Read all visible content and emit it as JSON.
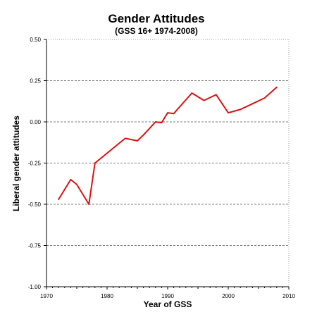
{
  "chart_data": {
    "type": "line",
    "title": "Gender Attitudes",
    "subtitle": "(GSS 16+ 1974-2008)",
    "xlabel": "Year of GSS",
    "ylabel": "Liberal gender attitudes",
    "xlim": [
      1970,
      2010
    ],
    "ylim": [
      -1.0,
      0.5
    ],
    "xticks": [
      1970,
      1980,
      1990,
      2000,
      2010
    ],
    "xtick_labels": [
      "1970",
      "1980",
      "1990",
      "2000",
      "2010"
    ],
    "yticks": [
      0.5,
      0.25,
      0.0,
      -0.25,
      -0.5,
      -0.75,
      -1.0
    ],
    "ytick_labels": [
      "0.50",
      "0.25",
      "0.00",
      "-0.25",
      "-0.50",
      "-0.75",
      "-1.00"
    ],
    "grid": "horizontal dashed",
    "series": [
      {
        "color": "#dd1111",
        "x": [
          1972,
          1974,
          1975,
          1977,
          1978,
          1982,
          1983,
          1985,
          1986,
          1988,
          1989,
          1990,
          1991,
          1994,
          1996,
          1998,
          2000,
          2002,
          2004,
          2006,
          2008
        ],
        "y": [
          -0.47,
          -0.35,
          -0.38,
          -0.5,
          -0.25,
          -0.13,
          -0.1,
          -0.115,
          -0.08,
          0.0,
          -0.005,
          0.055,
          0.05,
          0.175,
          0.13,
          0.165,
          0.055,
          0.075,
          0.11,
          0.145,
          0.21
        ]
      }
    ]
  }
}
